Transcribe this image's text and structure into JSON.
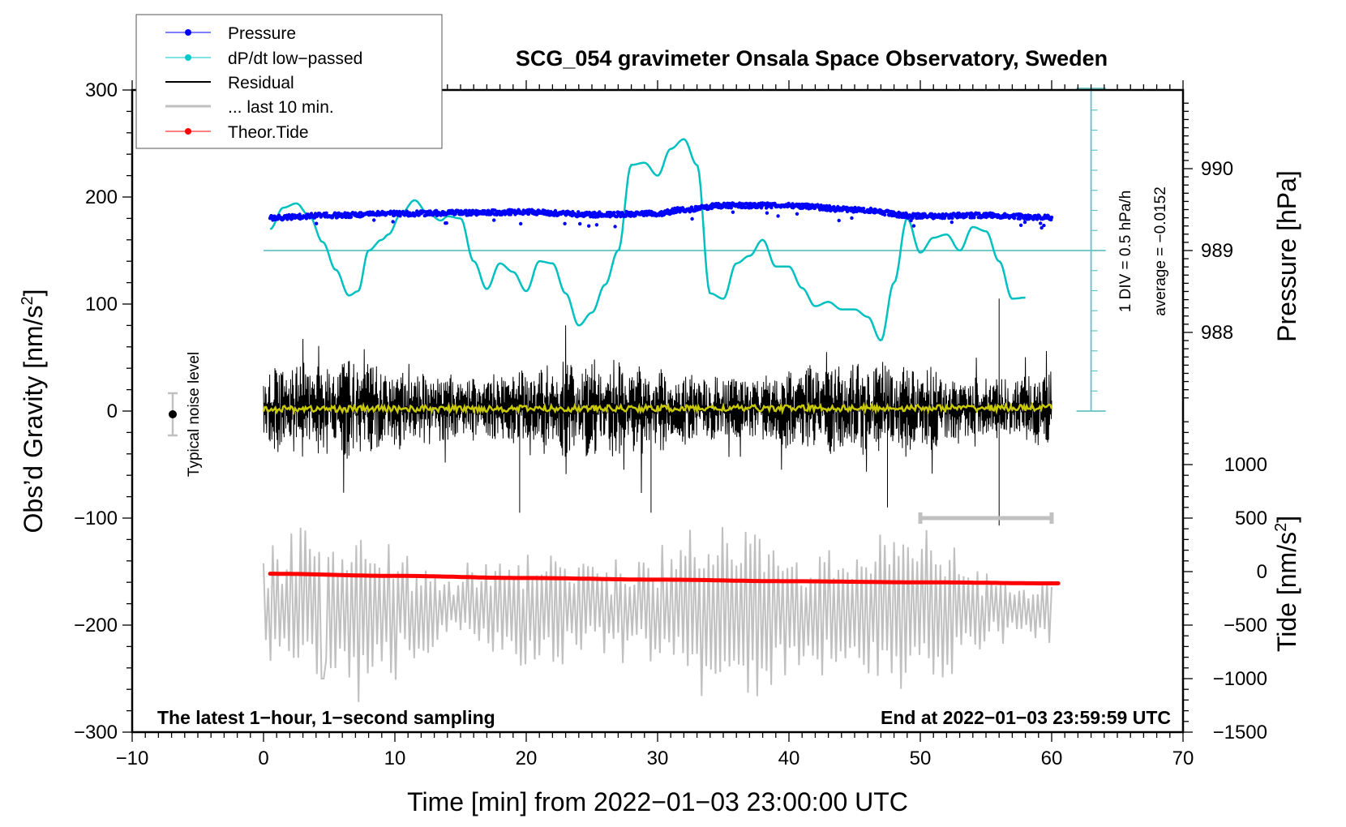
{
  "chart_data": {
    "type": "line",
    "title": "SCG_054 gravimeter Onsala Space Observatory, Sweden",
    "xlabel": "Time [min] from 2022−01−03 23:00:00 UTC",
    "ylabel_left": "Obs’d Gravity [nm/s²]",
    "ylabel_left_main": "Obs’d Gravity [nm/s",
    "ylabel_left_sup": "2",
    "ylabel_left_end": "]",
    "ylabel_right_pressure": "Pressure [hPa]",
    "ylabel_right_tide_main": "Tide [nm/s",
    "ylabel_right_tide_sup": "2",
    "ylabel_right_tide_end": "]",
    "xlim": [
      -10,
      70
    ],
    "ylim": [
      -300,
      300
    ],
    "x_ticks": [
      -10,
      0,
      10,
      20,
      30,
      40,
      50,
      60,
      70
    ],
    "x_tick_labels": [
      "−10",
      "0",
      "10",
      "20",
      "30",
      "40",
      "50",
      "60",
      "70"
    ],
    "y_ticks": [
      300,
      200,
      100,
      0,
      -100,
      -200,
      -300
    ],
    "y_tick_labels": [
      "300",
      "200",
      "100",
      "0",
      "−100",
      "−200",
      "−300"
    ],
    "pressure_axis": {
      "ticks": [
        990,
        989,
        988
      ],
      "tick_labels": [
        "990",
        "989",
        "988"
      ],
      "gravity_equivalent_of_989": 150,
      "gravity_units_per_hPa": 76.5
    },
    "tide_axis": {
      "ticks": [
        1000,
        500,
        0,
        -500,
        -1000,
        -1500
      ],
      "tick_labels": [
        "1000",
        "500",
        "0",
        "−500",
        "−1000",
        "−1500"
      ],
      "gravity_equivalent_of_0": -150,
      "tide_units_per_gravity_unit": 10
    },
    "legend": {
      "position": "top-left",
      "entries": [
        {
          "label": "Pressure",
          "color": "#0000ff",
          "style": "line-dot"
        },
        {
          "label": "dP/dt low−passed",
          "color": "#00c8c8",
          "style": "line-dot"
        },
        {
          "label": "Residual",
          "color": "#000000",
          "style": "line"
        },
        {
          "label": "... last 10 min.",
          "color": "#c0c0c0",
          "style": "thick-line"
        },
        {
          "label": "Theor.Tide",
          "color": "#ff0000",
          "style": "line-dot"
        }
      ]
    },
    "annotations": {
      "sampling_note": "The latest 1−hour, 1−second sampling",
      "end_note": "End at 2022−01−03 23:59:59 UTC",
      "noise_label": "Typical noise level",
      "noise_level": {
        "x": -7,
        "center": 0,
        "halfwidth": 20
      },
      "div_label": "1 DIV = 0.5 hPa/h",
      "average_label": "average = −0.0152",
      "last10_bar": {
        "x_start": 50,
        "x_end": 60,
        "y": -100
      }
    },
    "series": [
      {
        "name": "Pressure",
        "unit": "hPa",
        "color": "#0000ff",
        "x": [
          0.5,
          5,
          10,
          15,
          20,
          25,
          30,
          32,
          35,
          40,
          45,
          50,
          55,
          60
        ],
        "values": [
          989.4,
          989.43,
          989.45,
          989.46,
          989.47,
          989.44,
          989.45,
          989.5,
          989.55,
          989.55,
          989.5,
          989.42,
          989.43,
          989.4
        ]
      },
      {
        "name": "dP/dt low-passed",
        "unit": "gravity-axis equivalent (1 DIV = 0.5 hPa/h)",
        "color": "#00c8c8",
        "x": [
          0.5,
          1.5,
          2.5,
          3.5,
          4.5,
          5.5,
          6.5,
          7.2,
          8,
          9,
          9.5,
          10.5,
          11.5,
          12.5,
          13.5,
          14,
          15,
          16,
          17,
          18,
          19,
          20,
          21,
          22,
          23,
          24,
          25,
          26,
          27,
          28,
          29,
          30,
          31,
          32,
          33,
          34,
          35,
          36,
          37,
          38,
          39,
          40,
          41,
          42,
          43,
          44,
          45,
          46,
          47,
          48,
          49,
          50,
          51,
          52,
          53,
          54,
          55,
          56,
          57,
          58
        ],
        "values": [
          170,
          190,
          194,
          182,
          158,
          132,
          108,
          112,
          150,
          160,
          165,
          185,
          197,
          185,
          178,
          182,
          180,
          140,
          114,
          138,
          130,
          112,
          140,
          138,
          110,
          80,
          92,
          118,
          150,
          230,
          232,
          220,
          245,
          254,
          230,
          110,
          105,
          138,
          145,
          160,
          135,
          135,
          115,
          98,
          102,
          95,
          95,
          88,
          66,
          120,
          180,
          148,
          162,
          165,
          150,
          172,
          168,
          140,
          105,
          106
        ]
      },
      {
        "name": "Residual",
        "unit": "nm/s²",
        "color": "#000000",
        "x_range": [
          0,
          60
        ],
        "typical_envelope": [
          -70,
          70
        ],
        "peaks": [
          {
            "x": 19.5,
            "min": -95
          },
          {
            "x": 29.5,
            "min": -95
          },
          {
            "x": 47.5,
            "min": -90
          },
          {
            "x": 56,
            "max": 105,
            "min": -107
          }
        ]
      },
      {
        "name": "Residual low-passed",
        "unit": "nm/s²",
        "color": "#c8c800",
        "x": [
          0,
          60
        ],
        "values": [
          2,
          3
        ]
      },
      {
        "name": "last 10 min.",
        "unit": "nm/s² (gravity axis)",
        "color": "#c0c0c0",
        "x_range": [
          0,
          60
        ],
        "center": -200,
        "typical_envelope": [
          -250,
          -110
        ],
        "extremes": [
          {
            "x": 4.5,
            "value": -250
          },
          {
            "x": 4.7,
            "value": -95
          },
          {
            "x": 37.5,
            "value": -95
          },
          {
            "x": 37.5,
            "value": -297
          }
        ]
      },
      {
        "name": "Theor.Tide",
        "unit": "nm/s²",
        "color": "#ff0000",
        "x": [
          0.5,
          10,
          20,
          30,
          40,
          50,
          60.5
        ],
        "values": [
          -20,
          -40,
          -60,
          -75,
          -90,
          -100,
          -110
        ]
      }
    ],
    "grid": false
  }
}
